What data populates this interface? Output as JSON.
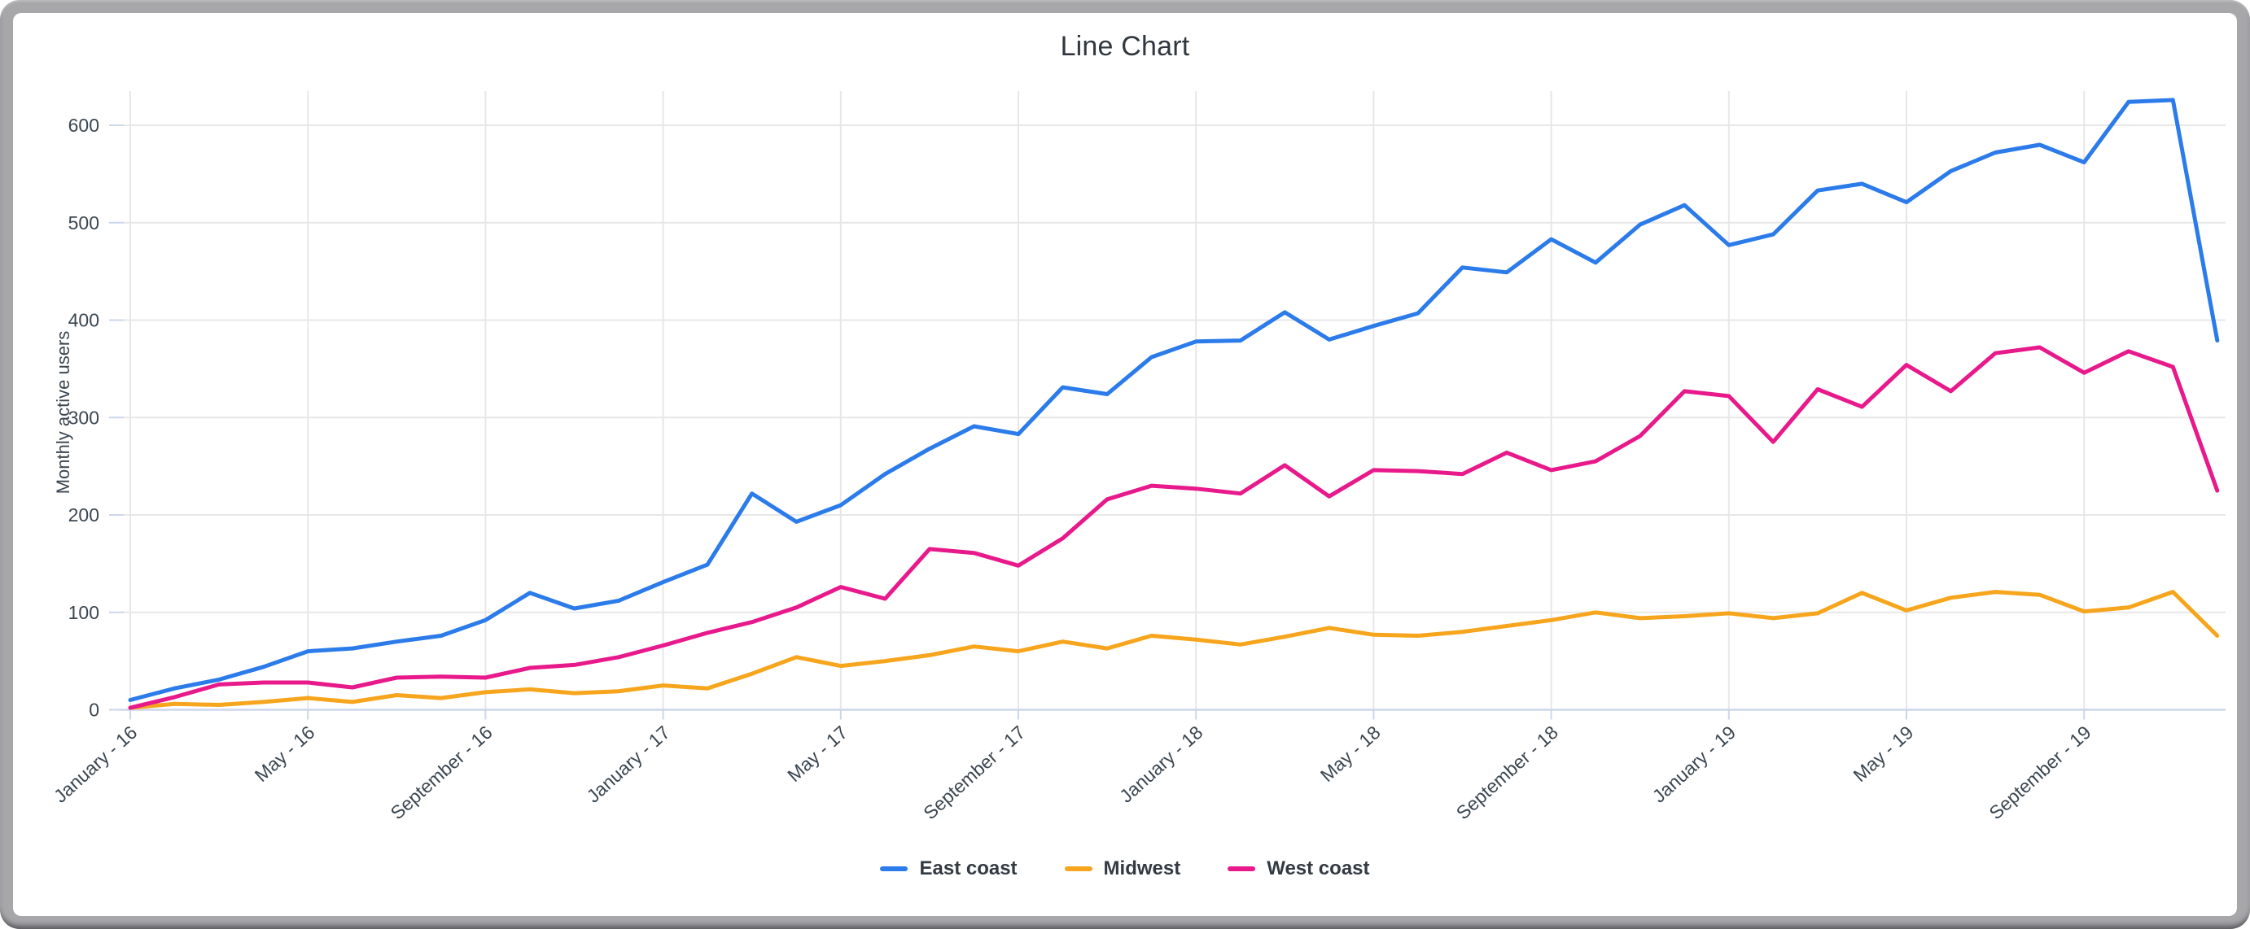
{
  "frame": {
    "outer_color": "#a7a7aa",
    "card_color": "#ffffff"
  },
  "chart_data": {
    "type": "line",
    "title": "Line Chart",
    "xlabel": "",
    "ylabel": "Monthly active users",
    "ylim": [
      0,
      650
    ],
    "yticks": [
      0,
      100,
      200,
      300,
      400,
      500,
      600
    ],
    "grid": true,
    "legend_position": "bottom",
    "x_unit": "month",
    "x_start": "January - 16",
    "x_end": "December - 19",
    "x_tick_positions": [
      0,
      4,
      8,
      12,
      16,
      20,
      24,
      28,
      32,
      36,
      40,
      44
    ],
    "x_tick_labels": [
      "January - 16",
      "May - 16",
      "September - 16",
      "January - 17",
      "May - 17",
      "September - 17",
      "January - 18",
      "May - 18",
      "September - 18",
      "January - 19",
      "May - 19",
      "September - 19"
    ],
    "grid_color": "#e7e7e7",
    "axis_line_color": "#ccd6eb",
    "tick_label_color": "#3b4650",
    "series": [
      {
        "name": "East coast",
        "color": "#2b7bea",
        "values": [
          10,
          22,
          31,
          44,
          60,
          63,
          70,
          76,
          92,
          120,
          104,
          112,
          131,
          149,
          222,
          193,
          210,
          242,
          268,
          291,
          283,
          331,
          324,
          362,
          378,
          379,
          408,
          380,
          394,
          407,
          454,
          449,
          483,
          459,
          498,
          518,
          477,
          488,
          533,
          540,
          521,
          553,
          572,
          580,
          562,
          624,
          626,
          379
        ]
      },
      {
        "name": "Midwest",
        "color": "#f6a51d",
        "values": [
          2,
          6,
          5,
          8,
          12,
          8,
          15,
          12,
          18,
          21,
          17,
          19,
          25,
          22,
          37,
          54,
          45,
          50,
          56,
          65,
          60,
          70,
          63,
          76,
          72,
          67,
          75,
          84,
          77,
          76,
          80,
          86,
          92,
          100,
          94,
          96,
          99,
          94,
          99,
          120,
          102,
          115,
          121,
          118,
          101,
          105,
          121,
          76
        ]
      },
      {
        "name": "West coast",
        "color": "#e8198b",
        "values": [
          2,
          13,
          26,
          28,
          28,
          23,
          33,
          34,
          33,
          43,
          46,
          54,
          66,
          79,
          90,
          105,
          126,
          114,
          165,
          161,
          148,
          176,
          216,
          230,
          227,
          222,
          251,
          219,
          246,
          245,
          242,
          264,
          246,
          255,
          281,
          327,
          322,
          275,
          329,
          311,
          354,
          327,
          366,
          372,
          346,
          368,
          352,
          225
        ]
      }
    ]
  }
}
